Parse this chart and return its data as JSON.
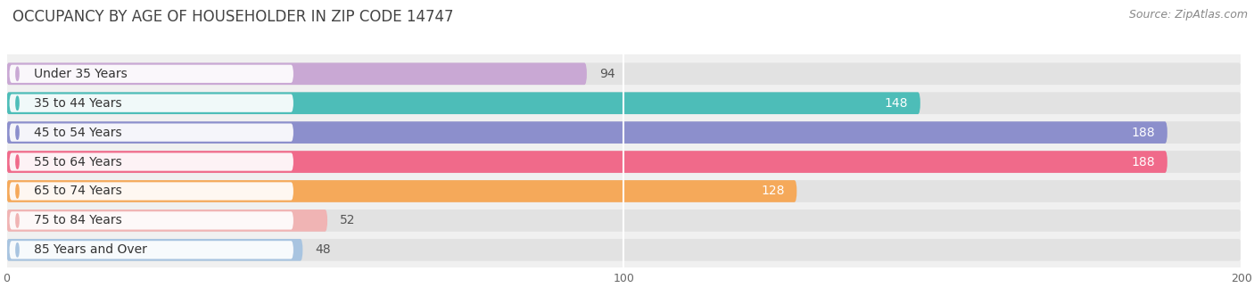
{
  "title": "OCCUPANCY BY AGE OF HOUSEHOLDER IN ZIP CODE 14747",
  "source": "Source: ZipAtlas.com",
  "categories": [
    "Under 35 Years",
    "35 to 44 Years",
    "45 to 54 Years",
    "55 to 64 Years",
    "65 to 74 Years",
    "75 to 84 Years",
    "85 Years and Over"
  ],
  "values": [
    94,
    148,
    188,
    188,
    128,
    52,
    48
  ],
  "bar_colors": [
    "#c9a8d4",
    "#4dbdb8",
    "#8c8fcc",
    "#f06a8a",
    "#f5a95a",
    "#f0b4b4",
    "#a8c4e0"
  ],
  "xlim": [
    0,
    200
  ],
  "xticks": [
    0,
    100,
    200
  ],
  "figure_bg": "#ffffff",
  "plot_bg": "#f0f0f0",
  "bar_bg_color": "#e2e2e2",
  "title_fontsize": 12,
  "label_fontsize": 10,
  "value_fontsize": 10,
  "source_fontsize": 9,
  "bar_height": 0.75,
  "value_threshold": 100
}
